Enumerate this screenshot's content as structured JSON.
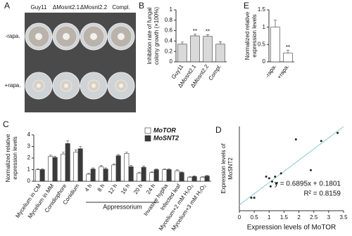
{
  "panel_a": {
    "label": "A",
    "columns": [
      "Guy11",
      "ΔMosnt2.1",
      "ΔMosnt2.2",
      "Compl."
    ],
    "rows": [
      "-rapa.",
      "+rapa."
    ]
  },
  "chart_data": [
    {
      "type": "bar",
      "panel": "B",
      "ylabel": [
        "Inhibition rate of fungal",
        "colony growth (×100%)"
      ],
      "categories": [
        "Guy11",
        "ΔMosnt2.1",
        "ΔMosnt2.2",
        "Compl."
      ],
      "values": [
        0.34,
        0.5,
        0.49,
        0.34
      ],
      "errors": [
        0.04,
        0.03,
        0.03,
        0.05
      ],
      "color": "#d9d9d9",
      "ylim": [
        0,
        1
      ],
      "yticks": [
        0,
        0.2,
        0.4,
        0.6,
        0.8,
        1
      ],
      "annotations": [
        {
          "category": "ΔMosnt2.1",
          "text": "**"
        },
        {
          "category": "ΔMosnt2.2",
          "text": "**"
        }
      ]
    },
    {
      "type": "bar",
      "panel": "E",
      "ylabel": [
        "Normalized relative",
        "expression levels"
      ],
      "categories": [
        "-rapa.",
        "+rapa."
      ],
      "values": [
        1.0,
        0.25
      ],
      "errors": [
        0.2,
        0.08
      ],
      "color": "#ffffff",
      "ylim": [
        0,
        1.5
      ],
      "yticks": [
        0,
        0.5,
        1,
        1.5
      ],
      "annotations": [
        {
          "category": "+rapa.",
          "text": "**"
        }
      ]
    },
    {
      "type": "bar",
      "panel": "C",
      "ylabel": [
        "Normalized relative",
        "expression levels"
      ],
      "categories": [
        "Mycelium in CM",
        "Mycelium in MM",
        "Conidiophore",
        "Conidium",
        "4 h",
        "8 h",
        "12 h",
        "16 h",
        "20 h",
        "24 h",
        "Invasive hypha",
        "Infected leaf",
        "Mycelium+2 mM H₂O₂",
        "Mycelium+3 mM H₂O₂"
      ],
      "category_groups": [
        {
          "name": "Appressorium",
          "start": 4,
          "end": 9
        }
      ],
      "series": [
        {
          "name": "MoTOR",
          "color": "#ffffff",
          "values": [
            1.0,
            2.15,
            2.35,
            2.5,
            0.6,
            1.25,
            1.4,
            2.4,
            0.7,
            0.75,
            1.0,
            0.9,
            0.35,
            0.35
          ],
          "errors": [
            0.05,
            0.1,
            0.15,
            0.2,
            0.08,
            0.1,
            0.1,
            0.1,
            0.08,
            0.05,
            0.05,
            0.08,
            0.03,
            0.03
          ]
        },
        {
          "name": "MoSNT2",
          "color": "#3a3a3a",
          "values": [
            1.0,
            2.05,
            3.25,
            2.8,
            1.05,
            1.05,
            2.2,
            1.25,
            1.2,
            1.0,
            1.0,
            0.75,
            0.4,
            0.45
          ],
          "errors": [
            0.05,
            0.1,
            0.25,
            0.2,
            0.1,
            0.1,
            0.1,
            0.1,
            0.1,
            0.05,
            0.05,
            0.05,
            0.05,
            0.05
          ]
        }
      ],
      "ylim": [
        0,
        4
      ],
      "yticks": [
        0,
        1,
        2,
        3,
        4
      ]
    },
    {
      "type": "scatter",
      "panel": "D",
      "ylabel": [
        "Expression levels of",
        "MoSNT2"
      ],
      "xlabel": "Expression levels of MoTOR",
      "x": [
        0.4,
        0.5,
        0.9,
        1.0,
        1.05,
        1.1,
        1.2,
        1.25,
        1.4,
        1.9,
        2.4,
        2.75,
        3.3
      ],
      "values": [
        0.4,
        0.4,
        1.05,
        1.0,
        0.75,
        0.9,
        1.05,
        0.85,
        1.15,
        2.2,
        1.25,
        2.15,
        2.4
      ],
      "color": "#222222",
      "trendline": {
        "slope": 0.6895,
        "intercept": 0.1801,
        "color": "#8ec9d6"
      },
      "annotations": [
        "y = 0.6895x + 0.1801",
        "R² = 0.8159"
      ],
      "xlim": [
        0,
        3.5
      ],
      "xticks": [
        0,
        0.5,
        1,
        1.5,
        2,
        2.5,
        3,
        3.5
      ],
      "ylim": [
        0,
        2.6
      ]
    }
  ]
}
